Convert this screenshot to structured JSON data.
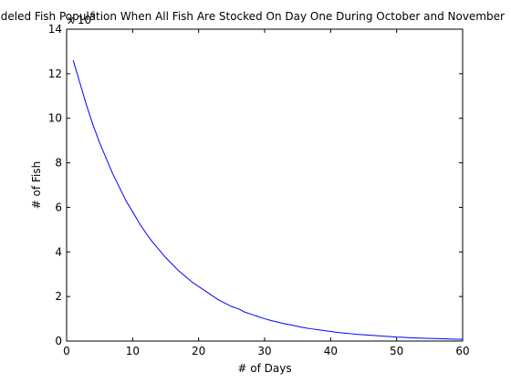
{
  "chart_data": {
    "type": "line",
    "title": "Modeled Fish Population When All Fish Are Stocked On Day One During October and November",
    "xlabel": "# of Days",
    "ylabel": "# of Fish",
    "y_multiplier_base": "x 10",
    "y_multiplier_exponent": "6",
    "xlim": [
      0,
      60
    ],
    "ylim": [
      0,
      14
    ],
    "xticks": [
      0,
      10,
      20,
      30,
      40,
      50,
      60
    ],
    "yticks": [
      0,
      2,
      4,
      6,
      8,
      10,
      12,
      14
    ],
    "grid": false,
    "legend": "none",
    "series": [
      {
        "color": "#0000ff",
        "x": [
          1,
          2,
          3,
          4,
          5,
          6,
          7,
          8,
          9,
          10,
          11,
          12,
          13,
          14,
          15,
          16,
          17,
          18,
          19,
          20,
          21,
          22,
          23,
          24,
          25,
          26,
          27,
          28,
          29,
          30,
          31,
          32,
          33,
          34,
          35,
          36,
          37,
          38,
          39,
          40,
          41,
          42,
          43,
          44,
          45,
          46,
          47,
          48,
          49,
          50,
          51,
          52,
          53,
          54,
          55,
          56,
          57,
          58,
          59,
          60
        ],
        "y": [
          12.6,
          11.6,
          10.6,
          9.7,
          8.9,
          8.2,
          7.5,
          6.9,
          6.3,
          5.8,
          5.3,
          4.85,
          4.45,
          4.1,
          3.75,
          3.45,
          3.15,
          2.9,
          2.65,
          2.45,
          2.25,
          2.05,
          1.85,
          1.7,
          1.55,
          1.45,
          1.3,
          1.2,
          1.1,
          1.0,
          0.92,
          0.85,
          0.78,
          0.72,
          0.66,
          0.6,
          0.55,
          0.51,
          0.47,
          0.43,
          0.39,
          0.36,
          0.33,
          0.3,
          0.28,
          0.26,
          0.24,
          0.22,
          0.2,
          0.18,
          0.17,
          0.15,
          0.14,
          0.13,
          0.12,
          0.11,
          0.1,
          0.09,
          0.08,
          0.08
        ]
      }
    ]
  }
}
